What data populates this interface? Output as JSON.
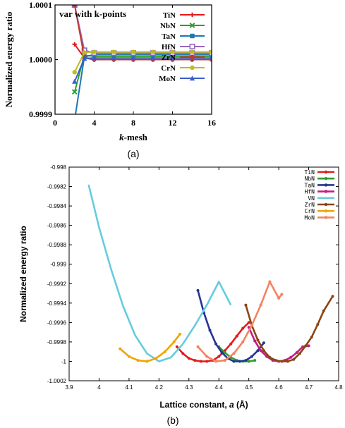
{
  "chart_data": [
    {
      "type": "line",
      "panel_label": "(a)",
      "title": "var with k-points",
      "xlabel": "k-mesh",
      "ylabel": "Normalized energy ratio",
      "xlim": [
        0,
        16
      ],
      "ylim": [
        0.9999,
        1.0001
      ],
      "x_ticks": [
        0,
        4,
        8,
        12,
        16
      ],
      "x_tick_labels": [
        "0",
        "4",
        "8",
        "12",
        "16"
      ],
      "y_ticks": [
        0.9999,
        1.0,
        1.0001
      ],
      "y_tick_labels": [
        "0.9999",
        "1.0000",
        "1.0001"
      ],
      "legend_position": "right",
      "series": [
        {
          "name": "TiN",
          "color": "#e41a1c",
          "marker": "plus",
          "x": [
            2,
            3,
            4,
            6,
            8,
            10,
            12,
            14,
            16
          ],
          "y": [
            1.000028,
            1.000003,
            1.0,
            1.0,
            1.0,
            1.0,
            1.0,
            1.0,
            1.0
          ]
        },
        {
          "name": "NbN",
          "color": "#2ca02c",
          "marker": "x",
          "x": [
            2,
            3,
            4,
            6,
            8,
            10,
            12,
            14,
            16
          ],
          "y": [
            0.999941,
            1.000008,
            1.000006,
            1.000006,
            1.000006,
            1.000006,
            1.000006,
            1.000006,
            1.000006
          ]
        },
        {
          "name": "TaN",
          "color": "#1f77b4",
          "marker": "square",
          "x": [
            2,
            3,
            4,
            6,
            8,
            10,
            12,
            14,
            16
          ],
          "y": [
            0.99989,
            1.000005,
            1.000009,
            1.000009,
            1.000009,
            1.000009,
            1.000009,
            1.000009,
            1.000009
          ]
        },
        {
          "name": "HfN",
          "color": "#9467bd",
          "marker": "square-open",
          "x": [
            2,
            3,
            4,
            6,
            8,
            10,
            12,
            14,
            16
          ],
          "y": [
            1.0001,
            1.000017,
            1.000012,
            1.000012,
            1.000012,
            1.000012,
            1.000012,
            1.000012,
            1.000012
          ]
        },
        {
          "name": "ZrN",
          "color": "#c0392b",
          "marker": "circle",
          "x": [
            2,
            3,
            4,
            6,
            8,
            10,
            12,
            14,
            16
          ],
          "y": [
            1.0001,
            1.000004,
            1.0,
            1.0,
            1.0,
            1.0,
            1.0,
            1.0,
            1.0
          ]
        },
        {
          "name": "CrN",
          "color": "#bcbd22",
          "marker": "circle",
          "x": [
            2,
            3,
            4,
            6,
            8,
            10,
            12,
            14,
            16
          ],
          "y": [
            0.999977,
            1.000013,
            1.000014,
            1.000014,
            1.000014,
            1.000014,
            1.000014,
            1.000014,
            1.000014
          ]
        },
        {
          "name": "MoN",
          "color": "#3a5fcd",
          "marker": "triangle",
          "x": [
            2,
            3,
            4,
            6,
            8,
            10,
            12,
            14,
            16
          ],
          "y": [
            0.99996,
            1.000002,
            1.000003,
            1.000003,
            1.000003,
            1.000003,
            1.000003,
            1.000003,
            1.000003
          ]
        }
      ]
    },
    {
      "type": "line",
      "panel_label": "(b)",
      "xlabel": "Lattice constant, a (Å)",
      "ylabel": "Normalized energy ratio",
      "xlim": [
        3.9,
        4.8
      ],
      "ylim": [
        -1.0002,
        -0.998
      ],
      "x_ticks": [
        3.9,
        4.0,
        4.1,
        4.2,
        4.3,
        4.4,
        4.5,
        4.6,
        4.7,
        4.8
      ],
      "x_tick_labels": [
        "3.9",
        "4",
        "4.1",
        "4.2",
        "4.3",
        "4.4",
        "4.5",
        "4.6",
        "4.7",
        "4.8"
      ],
      "y_ticks": [
        -0.998,
        -0.9982,
        -0.9984,
        -0.9986,
        -0.9988,
        -0.999,
        -0.9992,
        -0.9994,
        -0.9996,
        -0.9998,
        -1.0,
        -1.0002
      ],
      "y_tick_labels": [
        "-0.998",
        "-0.9982",
        "-0.9984",
        "-0.9986",
        "-0.9988",
        "-0.999",
        "-0.9992",
        "-0.9994",
        "-0.9996",
        "-0.9998",
        "-1",
        "-1.0002"
      ],
      "legend_position": "top-right",
      "series": [
        {
          "name": "TiN",
          "color": "#e41a1c",
          "x": [
            4.26,
            4.28,
            4.3,
            4.32,
            4.34,
            4.36,
            4.38,
            4.4,
            4.42,
            4.44,
            4.46,
            4.48,
            4.5
          ],
          "y": [
            -0.99985,
            -0.99992,
            -0.99997,
            -0.99999,
            -1.0,
            -1.0,
            -0.99999,
            -0.99995,
            -0.99989,
            -0.99982,
            -0.99974,
            -0.99966,
            -0.9996
          ]
        },
        {
          "name": "NbN",
          "color": "#2ca02c",
          "x": [
            4.4,
            4.42,
            4.44,
            4.46,
            4.48,
            4.5,
            4.52
          ],
          "y": [
            -0.99985,
            -0.99991,
            -0.99996,
            -0.99999,
            -1.0,
            -1.0,
            -0.99999
          ]
        },
        {
          "name": "TaN",
          "color": "#253494",
          "x": [
            4.33,
            4.35,
            4.37,
            4.39,
            4.41,
            4.43,
            4.45,
            4.47,
            4.49,
            4.51,
            4.53,
            4.55
          ],
          "y": [
            -0.99927,
            -0.9995,
            -0.99968,
            -0.99982,
            -0.99991,
            -0.99997,
            -1.0,
            -1.0,
            -0.99999,
            -0.99995,
            -0.99989,
            -0.99981
          ]
        },
        {
          "name": "HfN",
          "color": "#c51b8a",
          "x": [
            4.5,
            4.52,
            4.54,
            4.56,
            4.58,
            4.6,
            4.62,
            4.64,
            4.66,
            4.68,
            4.7
          ],
          "y": [
            -0.99965,
            -0.99979,
            -0.99989,
            -0.99995,
            -0.99999,
            -1.0,
            -0.99999,
            -0.99996,
            -0.99991,
            -0.99985,
            -0.99984
          ]
        },
        {
          "name": "VN",
          "color": "#66ccdd",
          "x": [
            3.965,
            4.0,
            4.04,
            4.08,
            4.12,
            4.16,
            4.2,
            4.24,
            4.28,
            4.32,
            4.36,
            4.4,
            4.44
          ],
          "y": [
            -0.99818,
            -0.99862,
            -0.99905,
            -0.99943,
            -0.99973,
            -0.99992,
            -1.0,
            -0.99996,
            -0.99982,
            -0.99963,
            -0.99942,
            -0.99918,
            -0.99942
          ]
        },
        {
          "name": "ZrN",
          "color": "#8b4513",
          "x": [
            4.49,
            4.51,
            4.53,
            4.55,
            4.57,
            4.59,
            4.61,
            4.63,
            4.65,
            4.67,
            4.69,
            4.71,
            4.73,
            4.75,
            4.78
          ],
          "y": [
            -0.99942,
            -0.99963,
            -0.99978,
            -0.99989,
            -0.99996,
            -0.99999,
            -1.0,
            -1.0,
            -0.99998,
            -0.99992,
            -0.99984,
            -0.99975,
            -0.99962,
            -0.99948,
            -0.99933
          ]
        },
        {
          "name": "CrN",
          "color": "#f0a500",
          "x": [
            4.07,
            4.1,
            4.13,
            4.16,
            4.19,
            4.22,
            4.25,
            4.27
          ],
          "y": [
            -0.99987,
            -0.99995,
            -0.99999,
            -1.0,
            -0.99997,
            -0.9999,
            -0.9998,
            -0.99972
          ]
        },
        {
          "name": "MoN",
          "color": "#f4845f",
          "x": [
            4.33,
            4.36,
            4.39,
            4.42,
            4.45,
            4.48,
            4.51,
            4.54,
            4.57,
            4.6,
            4.61
          ],
          "y": [
            -0.99985,
            -0.99995,
            -1.0,
            -0.99999,
            -0.99992,
            -0.9998,
            -0.99963,
            -0.99942,
            -0.99918,
            -0.99935,
            -0.99931
          ]
        }
      ]
    }
  ]
}
